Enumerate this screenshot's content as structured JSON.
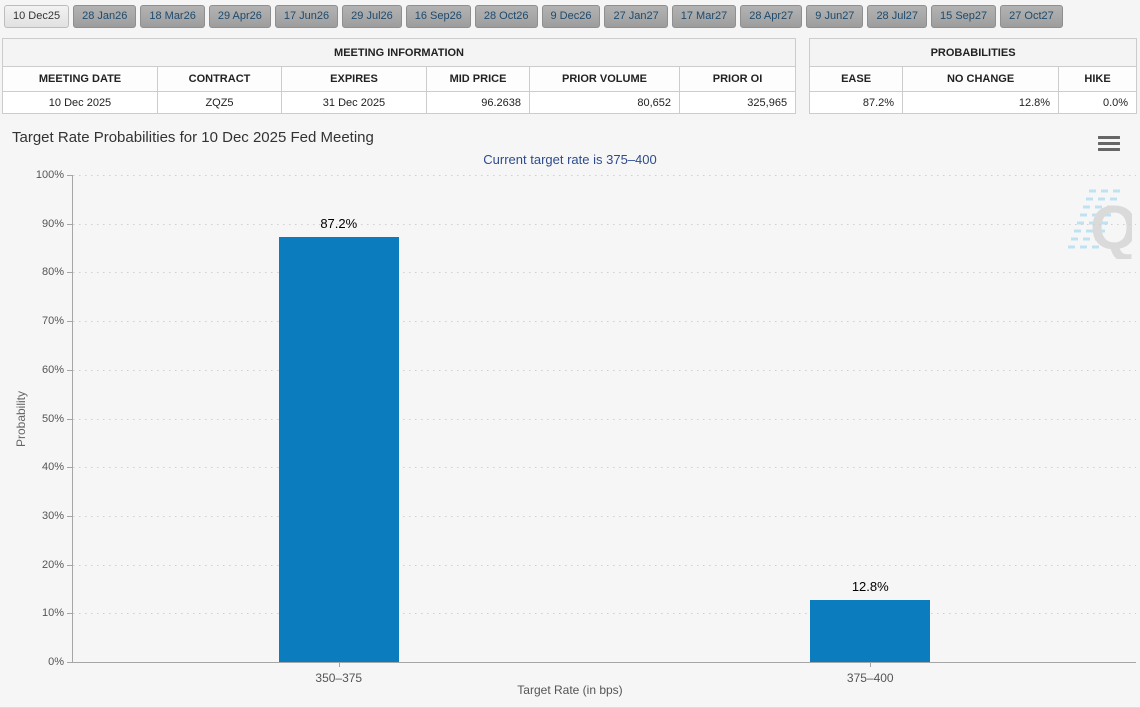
{
  "tabs": [
    {
      "label": "10 Dec25",
      "active": true
    },
    {
      "label": "28 Jan26",
      "active": false
    },
    {
      "label": "18 Mar26",
      "active": false
    },
    {
      "label": "29 Apr26",
      "active": false
    },
    {
      "label": "17 Jun26",
      "active": false
    },
    {
      "label": "29 Jul26",
      "active": false
    },
    {
      "label": "16 Sep26",
      "active": false
    },
    {
      "label": "28 Oct26",
      "active": false
    },
    {
      "label": "9 Dec26",
      "active": false
    },
    {
      "label": "27 Jan27",
      "active": false
    },
    {
      "label": "17 Mar27",
      "active": false
    },
    {
      "label": "28 Apr27",
      "active": false
    },
    {
      "label": "9 Jun27",
      "active": false
    },
    {
      "label": "28 Jul27",
      "active": false
    },
    {
      "label": "15 Sep27",
      "active": false
    },
    {
      "label": "27 Oct27",
      "active": false
    }
  ],
  "meeting_info": {
    "title": "MEETING INFORMATION",
    "columns": [
      "MEETING DATE",
      "CONTRACT",
      "EXPIRES",
      "MID PRICE",
      "PRIOR VOLUME",
      "PRIOR OI"
    ],
    "row": [
      "10 Dec 2025",
      "ZQZ5",
      "31 Dec 2025",
      "96.2638",
      "80,652",
      "325,965"
    ]
  },
  "probabilities": {
    "title": "PROBABILITIES",
    "columns": [
      "EASE",
      "NO CHANGE",
      "HIKE"
    ],
    "row": [
      "87.2%",
      "12.8%",
      "0.0%"
    ]
  },
  "chart": {
    "menu_icon": "hamburger-icon",
    "watermark_letter": "Q"
  },
  "chart_data": {
    "type": "bar",
    "title": "Target Rate Probabilities for 10 Dec 2025 Fed Meeting",
    "subtitle": "Current target rate is 375–400",
    "categories": [
      "350–375",
      "375–400"
    ],
    "values": [
      87.2,
      12.8
    ],
    "data_labels": [
      "87.2%",
      "12.8%"
    ],
    "xlabel": "Target Rate (in bps)",
    "ylabel": "Probability",
    "ylim": [
      0,
      100
    ],
    "ytick_step": 10,
    "ytick_suffix": "%",
    "bar_color": "#0b7dbe",
    "grid": "dotted horizontal",
    "legend": "none"
  }
}
